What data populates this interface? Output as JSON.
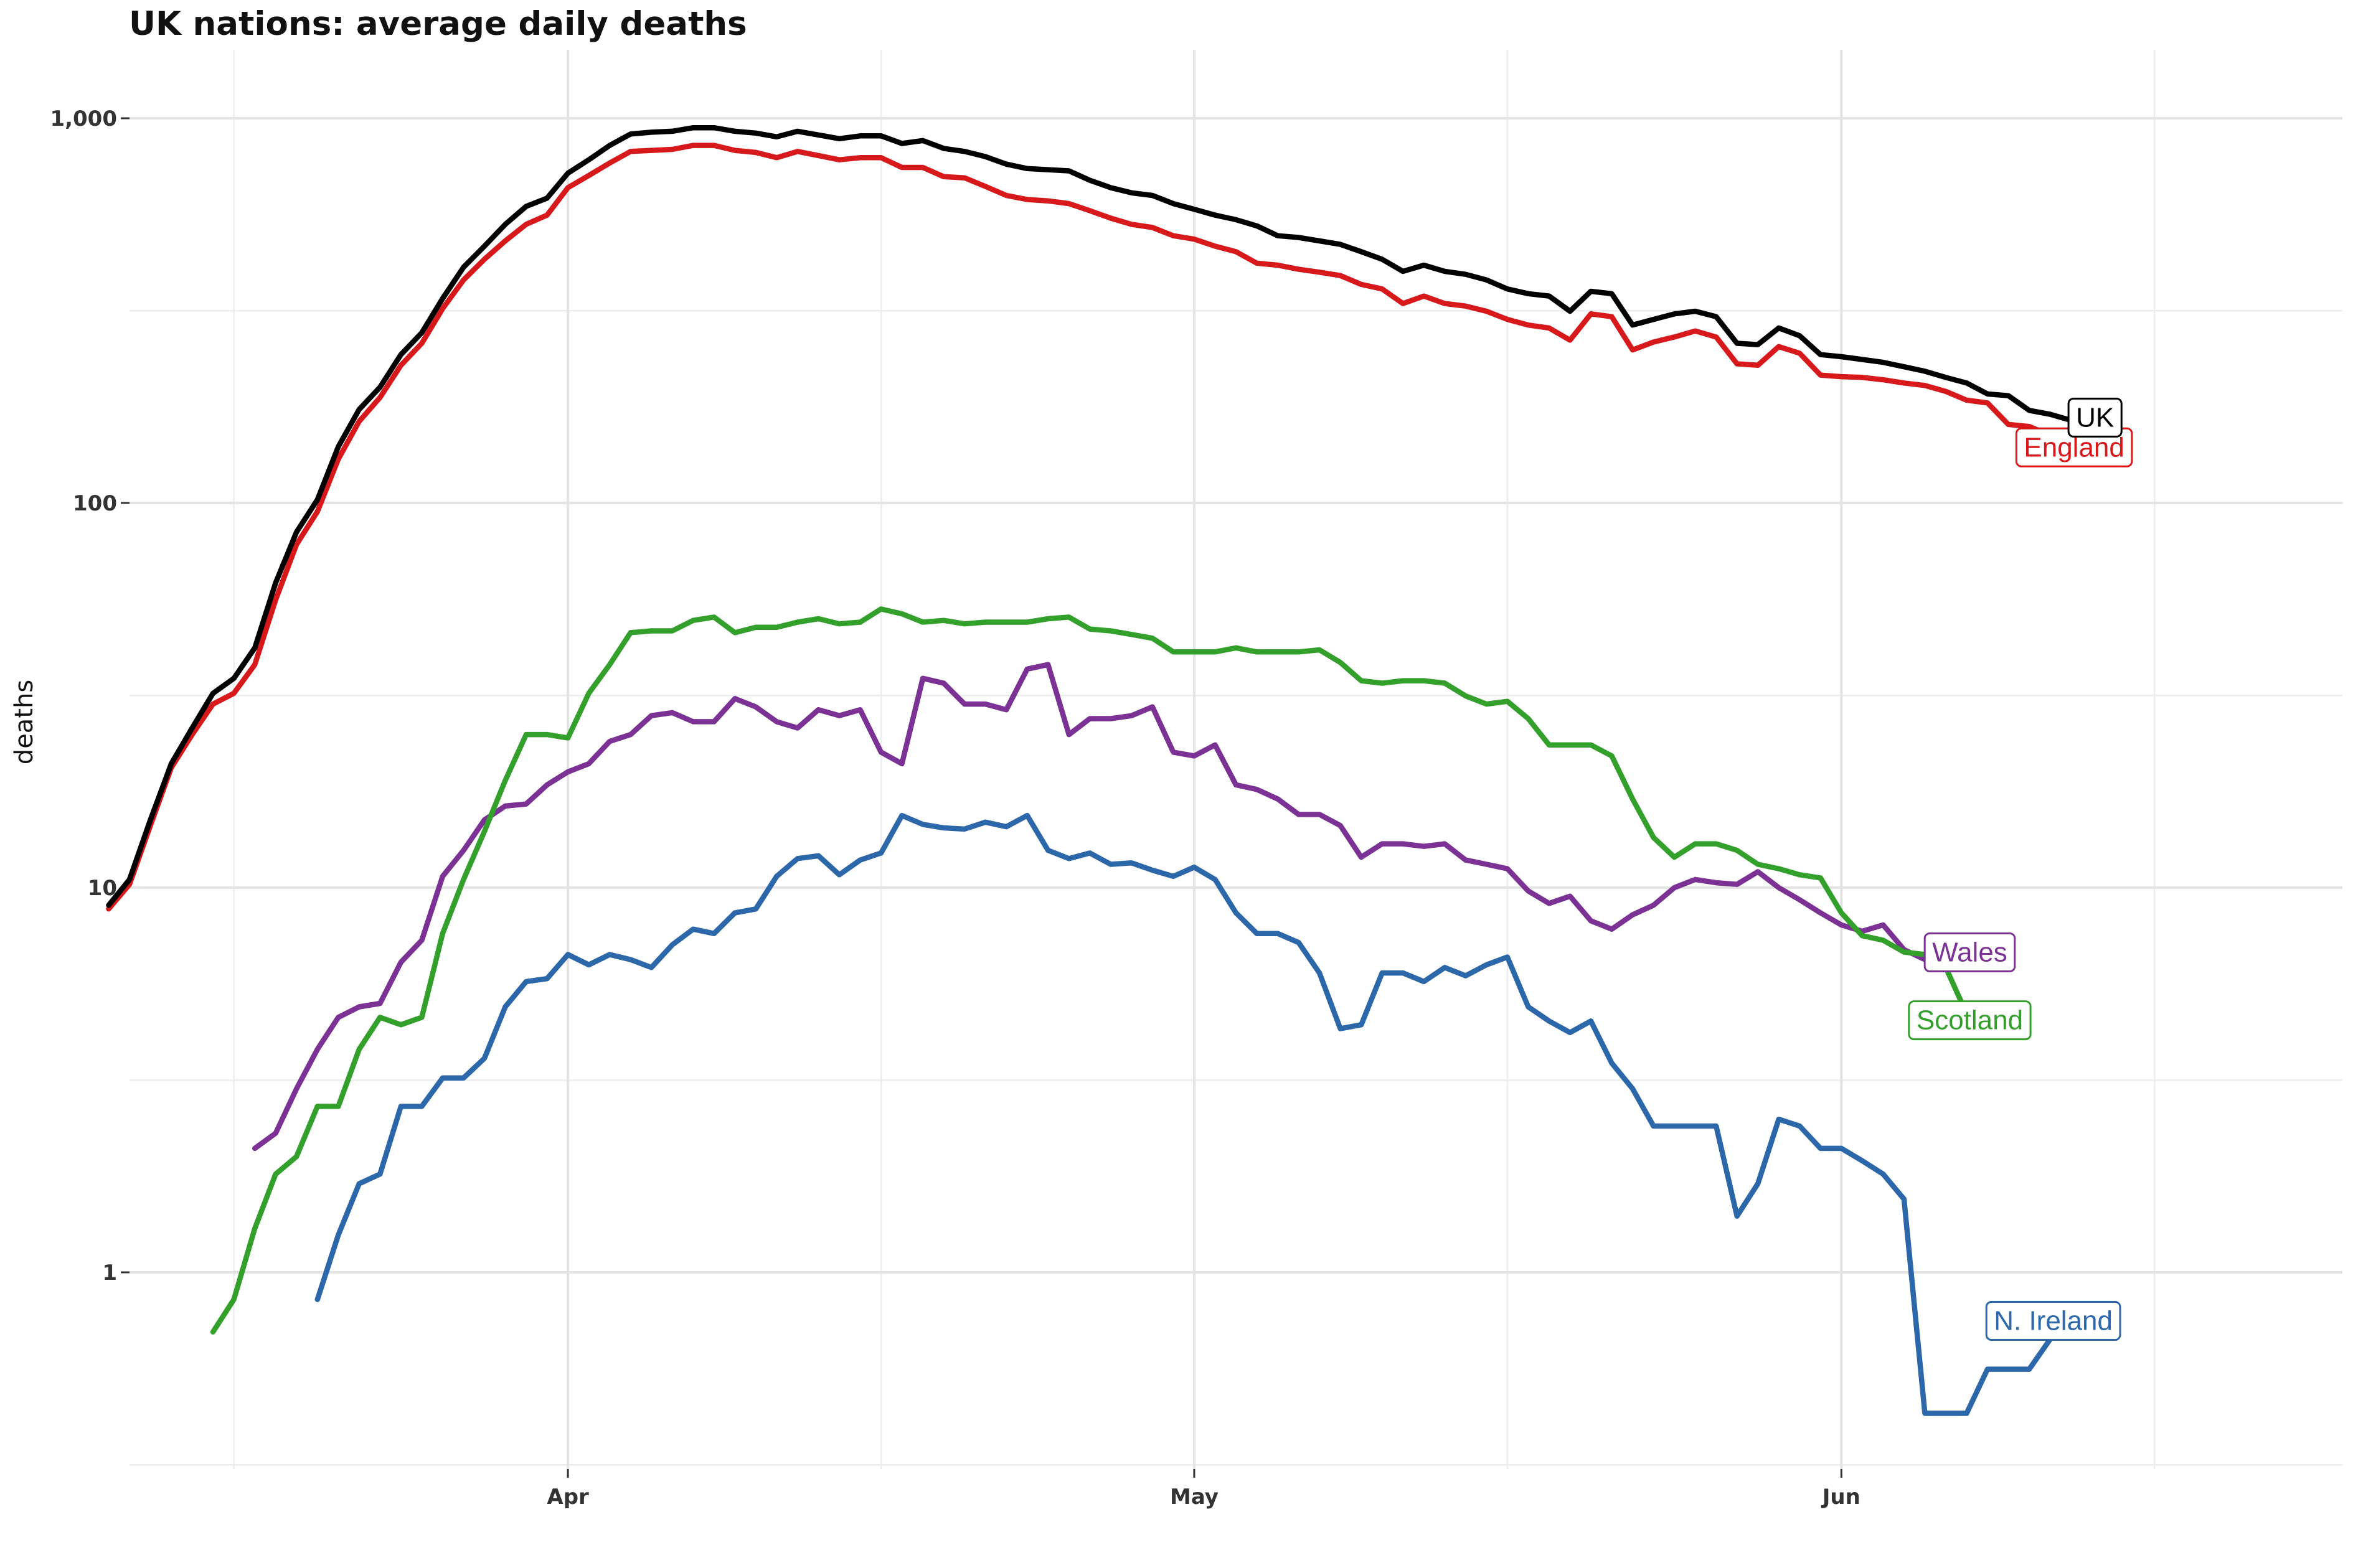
{
  "chart_data": {
    "type": "line",
    "title": "UK nations: average daily deaths",
    "xlabel": "",
    "ylabel": "deaths",
    "yscale": "log",
    "ylim": [
      0.3,
      1500
    ],
    "xlim": [
      "2020-03-11",
      "2020-06-25"
    ],
    "grid": true,
    "legend": "direct labels at line ends",
    "y_ticks": [
      {
        "value": 1,
        "label": "1"
      },
      {
        "value": 10,
        "label": "10"
      },
      {
        "value": 100,
        "label": "100"
      },
      {
        "value": 1000,
        "label": "1,000"
      }
    ],
    "x_ticks": [
      {
        "value": "2020-04-01",
        "label": "Apr"
      },
      {
        "value": "2020-05-01",
        "label": "May"
      },
      {
        "value": "2020-06-01",
        "label": "Jun"
      }
    ],
    "series": [
      {
        "name": "UK",
        "color": "#000000",
        "start": "2020-03-10",
        "values": [
          9,
          10.5,
          15,
          21,
          26,
          32,
          35,
          42,
          62,
          84,
          102,
          140,
          175,
          200,
          243,
          277,
          340,
          410,
          465,
          530,
          590,
          620,
          720,
          780,
          850,
          910,
          920,
          925,
          945,
          945,
          925,
          915,
          895,
          925,
          905,
          885,
          900,
          900,
          860,
          875,
          835,
          820,
          795,
          760,
          740,
          735,
          730,
          690,
          660,
          640,
          630,
          600,
          580,
          560,
          545,
          525,
          495,
          490,
          480,
          470,
          450,
          430,
          400,
          415,
          400,
          393,
          380,
          360,
          350,
          345,
          315,
          355,
          350,
          290,
          300,
          310,
          315,
          305,
          260,
          258,
          285,
          272,
          243,
          240,
          236,
          232,
          226,
          220,
          212,
          205,
          192,
          190,
          174,
          170,
          164,
          155
        ]
      },
      {
        "name": "England",
        "color": "#d7191c",
        "start": "2020-03-10",
        "values": [
          8.8,
          10.2,
          14.5,
          20.5,
          25,
          30,
          32,
          38,
          56,
          78,
          95,
          130,
          163,
          188,
          228,
          260,
          320,
          380,
          430,
          480,
          530,
          560,
          660,
          710,
          765,
          820,
          825,
          830,
          850,
          850,
          825,
          815,
          790,
          820,
          800,
          780,
          790,
          790,
          745,
          745,
          705,
          700,
          665,
          630,
          615,
          610,
          600,
          575,
          550,
          530,
          520,
          495,
          485,
          465,
          450,
          420,
          415,
          405,
          398,
          390,
          370,
          360,
          330,
          345,
          330,
          325,
          315,
          300,
          290,
          285,
          265,
          310,
          305,
          250,
          262,
          270,
          280,
          270,
          230,
          228,
          255,
          245,
          215,
          213,
          212,
          209,
          205,
          202,
          195,
          185,
          182,
          160,
          158,
          150,
          145
        ]
      },
      {
        "name": "Scotland",
        "color": "#33a02c",
        "start": "2020-03-15",
        "values": [
          0.7,
          0.85,
          1.3,
          1.8,
          2,
          2.7,
          2.7,
          3.8,
          4.6,
          4.4,
          4.6,
          7.6,
          10.5,
          14,
          19,
          25,
          25,
          24.5,
          32,
          38,
          46,
          46.5,
          46.5,
          49.5,
          50.5,
          46,
          47.5,
          47.5,
          49,
          50,
          48.5,
          49,
          53,
          51.5,
          49,
          49.5,
          48.5,
          49,
          49,
          49,
          50,
          50.5,
          47,
          46.5,
          45.5,
          44.5,
          41,
          41,
          41,
          42,
          41,
          41,
          41,
          41.5,
          38.5,
          34.5,
          34,
          34.5,
          34.5,
          34,
          31.5,
          30,
          30.5,
          27.5,
          23.5,
          23.5,
          23.5,
          22,
          17,
          13.5,
          12,
          13,
          13,
          12.5,
          11.5,
          11.2,
          10.8,
          10.6,
          8.6,
          7.5,
          7.3,
          6.8,
          6.7,
          6.2,
          4.7
        ]
      },
      {
        "name": "Wales",
        "color": "#7b3294",
        "start": "2020-03-17",
        "values": [
          2.1,
          2.3,
          3,
          3.8,
          4.6,
          4.9,
          5,
          6.4,
          7.3,
          10.7,
          12.5,
          15,
          16.3,
          16.5,
          18.5,
          20,
          21,
          24,
          25,
          28,
          28.5,
          27,
          27,
          31,
          29.5,
          27,
          26,
          29,
          28,
          29,
          22.5,
          21,
          35,
          34,
          30,
          30,
          29,
          37,
          38,
          25,
          27.5,
          27.5,
          28,
          29.5,
          22.5,
          22,
          23.5,
          18.5,
          18,
          17,
          15.5,
          15.5,
          14.5,
          12,
          13,
          13,
          12.8,
          13,
          11.8,
          11.5,
          11.2,
          9.8,
          9.1,
          9.5,
          8.2,
          7.8,
          8.5,
          9,
          10,
          10.5,
          10.3,
          10.2,
          11,
          10,
          9.3,
          8.6,
          8,
          7.7,
          8,
          6.9,
          6.5,
          7.3,
          6.8
        ]
      },
      {
        "name": "N. Ireland",
        "color": "#2c67aa",
        "start": "2020-03-20",
        "values": [
          0.85,
          1.25,
          1.7,
          1.8,
          2.7,
          2.7,
          3.2,
          3.2,
          3.6,
          4.9,
          5.7,
          5.8,
          6.7,
          6.3,
          6.7,
          6.5,
          6.2,
          7.1,
          7.8,
          7.6,
          8.6,
          8.8,
          10.7,
          11.9,
          12.1,
          10.8,
          11.8,
          12.3,
          15.4,
          14.6,
          14.3,
          14.2,
          14.8,
          14.4,
          15.4,
          12.5,
          11.9,
          12.3,
          11.5,
          11.6,
          11.1,
          10.7,
          11.3,
          10.5,
          8.6,
          7.6,
          7.6,
          7.2,
          6,
          4.3,
          4.4,
          6,
          6,
          5.7,
          6.2,
          5.9,
          6.3,
          6.6,
          4.9,
          4.5,
          4.2,
          4.5,
          3.5,
          3,
          2.4,
          2.4,
          2.4,
          2.4,
          1.4,
          1.7,
          2.5,
          2.4,
          2.1,
          2.1,
          1.95,
          1.8,
          1.55,
          0.43,
          0.43,
          0.43,
          0.56,
          0.56,
          0.56,
          0.67
        ]
      }
    ]
  }
}
